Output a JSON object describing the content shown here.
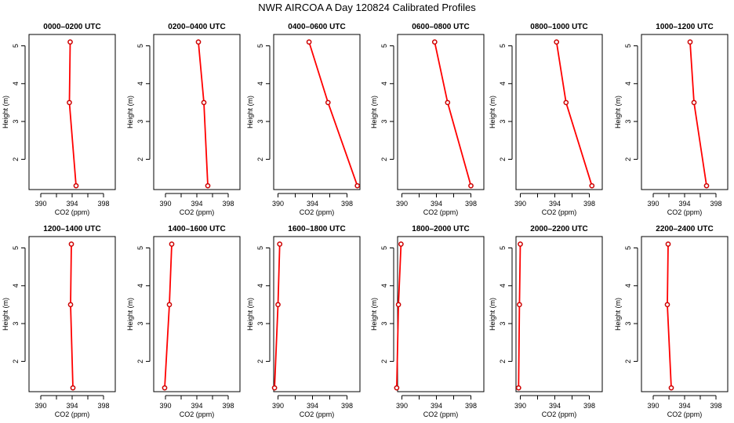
{
  "figure_title": "NWR AIRCOA A  Day 120824  Calibrated Profiles",
  "colors": {
    "line": "#ff0000",
    "point": "#cc0000",
    "axis": "#000000"
  },
  "chart_data": [
    {
      "type": "line",
      "title": "0000–0200 UTC",
      "xlabel": "CO2 (ppm)",
      "ylabel": "Height (m)",
      "xlim": [
        388.5,
        399.5
      ],
      "ylim": [
        1.2,
        5.3
      ],
      "xticks": [
        "390",
        "394",
        "398"
      ],
      "xtick_values": [
        390,
        394,
        398
      ],
      "yticks": [
        "2",
        "3",
        "4",
        "5"
      ],
      "ytick_values": [
        2,
        3,
        4,
        5
      ],
      "x": [
        393.75,
        393.65,
        394.5
      ],
      "y": [
        5.1,
        3.5,
        1.3
      ]
    },
    {
      "type": "line",
      "title": "0200–0400 UTC",
      "xlabel": "CO2 (ppm)",
      "ylabel": "Height (m)",
      "xlim": [
        388.5,
        399.5
      ],
      "ylim": [
        1.2,
        5.3
      ],
      "xticks": [
        "390",
        "394",
        "398"
      ],
      "xtick_values": [
        390,
        394,
        398
      ],
      "yticks": [
        "2",
        "3",
        "4",
        "5"
      ],
      "ytick_values": [
        2,
        3,
        4,
        5
      ],
      "x": [
        394.2,
        394.9,
        395.4
      ],
      "y": [
        5.1,
        3.5,
        1.3
      ]
    },
    {
      "type": "line",
      "title": "0400–0600 UTC",
      "xlabel": "CO2 (ppm)",
      "ylabel": "Height (m)",
      "xlim": [
        389.5,
        399.5
      ],
      "ylim": [
        1.2,
        5.3
      ],
      "xticks": [
        "390",
        "394",
        "398"
      ],
      "xtick_values": [
        390,
        394,
        398
      ],
      "yticks": [
        "2",
        "3",
        "4",
        "5"
      ],
      "ytick_values": [
        2,
        3,
        4,
        5
      ],
      "x": [
        393.6,
        395.8,
        399.2
      ],
      "y": [
        5.1,
        3.5,
        1.3
      ]
    },
    {
      "type": "line",
      "title": "0600–0800 UTC",
      "xlabel": "CO2 (ppm)",
      "ylabel": "Height (m)",
      "xlim": [
        389.5,
        399.5
      ],
      "ylim": [
        1.2,
        5.3
      ],
      "xticks": [
        "390",
        "394",
        "398"
      ],
      "xtick_values": [
        390,
        394,
        398
      ],
      "yticks": [
        "2",
        "3",
        "4",
        "5"
      ],
      "ytick_values": [
        2,
        3,
        4,
        5
      ],
      "x": [
        393.8,
        395.3,
        398.0
      ],
      "y": [
        5.1,
        3.5,
        1.3
      ]
    },
    {
      "type": "line",
      "title": "0800–1000 UTC",
      "xlabel": "CO2 (ppm)",
      "ylabel": "Height (m)",
      "xlim": [
        389.5,
        399.5
      ],
      "ylim": [
        1.2,
        5.3
      ],
      "xticks": [
        "390",
        "394",
        "398"
      ],
      "xtick_values": [
        390,
        394,
        398
      ],
      "yticks": [
        "2",
        "3",
        "4",
        "5"
      ],
      "ytick_values": [
        2,
        3,
        4,
        5
      ],
      "x": [
        394.2,
        395.3,
        398.3
      ],
      "y": [
        5.1,
        3.5,
        1.3
      ]
    },
    {
      "type": "line",
      "title": "1000–1200 UTC",
      "xlabel": "CO2 (ppm)",
      "ylabel": "Height (m)",
      "xlim": [
        388.5,
        399.5
      ],
      "ylim": [
        1.2,
        5.3
      ],
      "xticks": [
        "390",
        "394",
        "398"
      ],
      "xtick_values": [
        390,
        394,
        398
      ],
      "yticks": [
        "2",
        "3",
        "4",
        "5"
      ],
      "ytick_values": [
        2,
        3,
        4,
        5
      ],
      "x": [
        394.7,
        395.2,
        396.8
      ],
      "y": [
        5.1,
        3.5,
        1.3
      ]
    },
    {
      "type": "line",
      "title": "1200–1400 UTC",
      "xlabel": "CO2 (ppm)",
      "ylabel": "Height (m)",
      "xlim": [
        388.5,
        399.5
      ],
      "ylim": [
        1.2,
        5.3
      ],
      "xticks": [
        "390",
        "394",
        "398"
      ],
      "xtick_values": [
        390,
        394,
        398
      ],
      "yticks": [
        "2",
        "3",
        "4",
        "5"
      ],
      "ytick_values": [
        2,
        3,
        4,
        5
      ],
      "x": [
        393.9,
        393.8,
        394.1
      ],
      "y": [
        5.1,
        3.5,
        1.3
      ]
    },
    {
      "type": "line",
      "title": "1400–1600 UTC",
      "xlabel": "CO2 (ppm)",
      "ylabel": "Height (m)",
      "xlim": [
        388.5,
        399.5
      ],
      "ylim": [
        1.2,
        5.3
      ],
      "xticks": [
        "390",
        "394",
        "398"
      ],
      "xtick_values": [
        390,
        394,
        398
      ],
      "yticks": [
        "2",
        "3",
        "4",
        "5"
      ],
      "ytick_values": [
        2,
        3,
        4,
        5
      ],
      "x": [
        390.8,
        390.5,
        389.9
      ],
      "y": [
        5.1,
        3.5,
        1.3
      ]
    },
    {
      "type": "line",
      "title": "1600–1800 UTC",
      "xlabel": "CO2 (ppm)",
      "ylabel": "Height (m)",
      "xlim": [
        389.5,
        399.5
      ],
      "ylim": [
        1.2,
        5.3
      ],
      "xticks": [
        "390",
        "394",
        "398"
      ],
      "xtick_values": [
        390,
        394,
        398
      ],
      "yticks": [
        "2",
        "3",
        "4",
        "5"
      ],
      "ytick_values": [
        2,
        3,
        4,
        5
      ],
      "x": [
        390.2,
        390.0,
        389.6
      ],
      "y": [
        5.1,
        3.5,
        1.3
      ]
    },
    {
      "type": "line",
      "title": "1800–2000 UTC",
      "xlabel": "CO2 (ppm)",
      "ylabel": "Height (m)",
      "xlim": [
        389.5,
        399.5
      ],
      "ylim": [
        1.2,
        5.3
      ],
      "xticks": [
        "390",
        "394",
        "398"
      ],
      "xtick_values": [
        390,
        394,
        398
      ],
      "yticks": [
        "2",
        "3",
        "4",
        "5"
      ],
      "ytick_values": [
        2,
        3,
        4,
        5
      ],
      "x": [
        389.9,
        389.6,
        389.4
      ],
      "y": [
        5.1,
        3.5,
        1.3
      ]
    },
    {
      "type": "line",
      "title": "2000–2200 UTC",
      "xlabel": "CO2 (ppm)",
      "ylabel": "Height (m)",
      "xlim": [
        389.5,
        399.5
      ],
      "ylim": [
        1.2,
        5.3
      ],
      "xticks": [
        "390",
        "394",
        "398"
      ],
      "xtick_values": [
        390,
        394,
        398
      ],
      "yticks": [
        "2",
        "3",
        "4",
        "5"
      ],
      "ytick_values": [
        2,
        3,
        4,
        5
      ],
      "x": [
        390.0,
        389.9,
        389.8
      ],
      "y": [
        5.1,
        3.5,
        1.3
      ]
    },
    {
      "type": "line",
      "title": "2200–2400 UTC",
      "xlabel": "CO2 (ppm)",
      "ylabel": "Height (m)",
      "xlim": [
        388.5,
        399.5
      ],
      "ylim": [
        1.2,
        5.3
      ],
      "xticks": [
        "390",
        "394",
        "398"
      ],
      "xtick_values": [
        390,
        394,
        398
      ],
      "yticks": [
        "2",
        "3",
        "4",
        "5"
      ],
      "ytick_values": [
        2,
        3,
        4,
        5
      ],
      "x": [
        391.9,
        391.8,
        392.3
      ],
      "y": [
        5.1,
        3.5,
        1.3
      ]
    }
  ]
}
